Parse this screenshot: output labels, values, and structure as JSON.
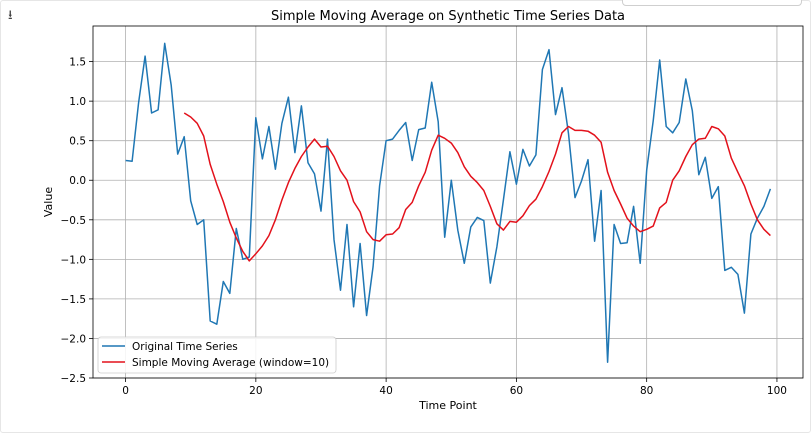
{
  "toolbar": {
    "icon": "expand-icon"
  },
  "chart_data": {
    "type": "line",
    "title": "Simple Moving Average on Synthetic Time Series Data",
    "xlabel": "Time Point",
    "ylabel": "Value",
    "xlim": [
      -5,
      104
    ],
    "ylim": [
      -2.5,
      1.95
    ],
    "xticks": [
      0,
      20,
      40,
      60,
      80,
      100
    ],
    "xtick_labels": [
      "0",
      "20",
      "40",
      "60",
      "80",
      "100"
    ],
    "yticks": [
      -2.5,
      -2.0,
      -1.5,
      -1.0,
      -0.5,
      0.0,
      0.5,
      1.0,
      1.5
    ],
    "ytick_labels": [
      "−2.5",
      "−2.0",
      "−1.5",
      "−1.0",
      "−0.5",
      "0.0",
      "0.5",
      "1.0",
      "1.5"
    ],
    "grid": true,
    "legend": {
      "position": "lower-left",
      "entries": [
        "Original Time Series",
        "Simple Moving Average (window=10)"
      ]
    },
    "series": [
      {
        "name": "Original Time Series",
        "color": "#1f77b4",
        "x": [
          0,
          1,
          2,
          3,
          4,
          5,
          6,
          7,
          8,
          9,
          10,
          11,
          12,
          13,
          14,
          15,
          16,
          17,
          18,
          19,
          20,
          21,
          22,
          23,
          24,
          25,
          26,
          27,
          28,
          29,
          30,
          31,
          32,
          33,
          34,
          35,
          36,
          37,
          38,
          39,
          40,
          41,
          42,
          43,
          44,
          45,
          46,
          47,
          48,
          49,
          50,
          51,
          52,
          53,
          54,
          55,
          56,
          57,
          58,
          59,
          60,
          61,
          62,
          63,
          64,
          65,
          66,
          67,
          68,
          69,
          70,
          71,
          72,
          73,
          74,
          75,
          76,
          77,
          78,
          79,
          80,
          81,
          82,
          83,
          84,
          85,
          86,
          87,
          88,
          89,
          90,
          91,
          92,
          93,
          94,
          95,
          96,
          97,
          98,
          99
        ],
        "values": [
          0.25,
          0.24,
          0.98,
          1.57,
          0.85,
          0.89,
          1.73,
          1.2,
          0.33,
          0.55,
          -0.26,
          -0.56,
          -0.5,
          -1.78,
          -1.82,
          -1.28,
          -1.43,
          -0.61,
          -1.0,
          -0.97,
          0.79,
          0.27,
          0.68,
          0.14,
          0.72,
          1.05,
          0.35,
          0.94,
          0.22,
          0.08,
          -0.39,
          0.52,
          -0.75,
          -1.39,
          -0.56,
          -1.6,
          -0.8,
          -1.71,
          -1.09,
          -0.07,
          0.5,
          0.52,
          0.63,
          0.73,
          0.25,
          0.64,
          0.66,
          1.24,
          0.74,
          -0.72,
          0.0,
          -0.63,
          -1.05,
          -0.59,
          -0.47,
          -0.51,
          -1.3,
          -0.84,
          -0.25,
          0.36,
          -0.05,
          0.39,
          0.18,
          0.32,
          1.4,
          1.65,
          0.83,
          1.17,
          0.59,
          -0.22,
          -0.01,
          0.26,
          -0.77,
          -0.13,
          -2.3,
          -0.56,
          -0.8,
          -0.79,
          -0.33,
          -1.05,
          0.13,
          0.75,
          1.52,
          0.68,
          0.6,
          0.73,
          1.28,
          0.88,
          0.07,
          0.29,
          -0.23,
          -0.08,
          -1.14,
          -1.1,
          -1.19,
          -1.68,
          -0.68,
          -0.48,
          -0.33,
          -0.11
        ]
      },
      {
        "name": "Simple Moving Average (window=10)",
        "color": "#e3111b",
        "x": [
          9,
          10,
          11,
          12,
          13,
          14,
          15,
          16,
          17,
          18,
          19,
          20,
          21,
          22,
          23,
          24,
          25,
          26,
          27,
          28,
          29,
          30,
          31,
          32,
          33,
          34,
          35,
          36,
          37,
          38,
          39,
          40,
          41,
          42,
          43,
          44,
          45,
          46,
          47,
          48,
          49,
          50,
          51,
          52,
          53,
          54,
          55,
          56,
          57,
          58,
          59,
          60,
          61,
          62,
          63,
          64,
          65,
          66,
          67,
          68,
          69,
          70,
          71,
          72,
          73,
          74,
          75,
          76,
          77,
          78,
          79,
          80,
          81,
          82,
          83,
          84,
          85,
          86,
          87,
          88,
          89,
          90,
          91,
          92,
          93,
          94,
          95,
          96,
          97,
          98,
          99
        ],
        "values": [
          0.85,
          0.8,
          0.72,
          0.56,
          0.2,
          -0.05,
          -0.27,
          -0.53,
          -0.73,
          -0.9,
          -1.02,
          -0.93,
          -0.83,
          -0.7,
          -0.5,
          -0.25,
          -0.03,
          0.15,
          0.3,
          0.42,
          0.52,
          0.42,
          0.43,
          0.3,
          0.12,
          0.0,
          -0.27,
          -0.4,
          -0.65,
          -0.75,
          -0.77,
          -0.69,
          -0.68,
          -0.6,
          -0.37,
          -0.28,
          -0.07,
          0.1,
          0.38,
          0.57,
          0.53,
          0.47,
          0.35,
          0.17,
          0.05,
          -0.03,
          -0.13,
          -0.33,
          -0.55,
          -0.63,
          -0.52,
          -0.53,
          -0.45,
          -0.32,
          -0.24,
          -0.08,
          0.11,
          0.33,
          0.6,
          0.68,
          0.63,
          0.63,
          0.62,
          0.57,
          0.48,
          0.1,
          -0.13,
          -0.3,
          -0.48,
          -0.58,
          -0.65,
          -0.62,
          -0.58,
          -0.35,
          -0.28,
          0.0,
          0.12,
          0.3,
          0.45,
          0.52,
          0.53,
          0.68,
          0.65,
          0.56,
          0.28,
          0.1,
          -0.07,
          -0.3,
          -0.5,
          -0.62,
          -0.7
        ]
      }
    ]
  }
}
